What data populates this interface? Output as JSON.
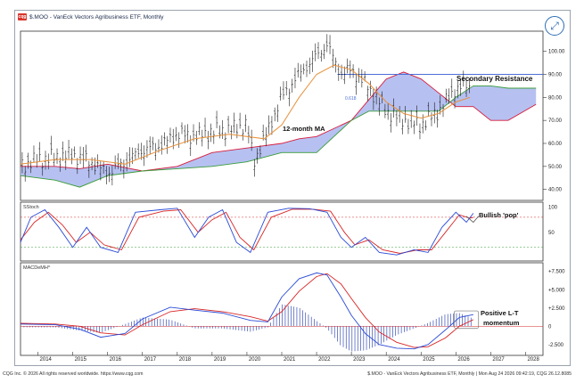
{
  "window": {
    "title": "$.MOO - VanEck Vectors Agribusiness ETF, Monthly",
    "logo_text": "cqg",
    "expand_icon": "expand-arrows-icon"
  },
  "price_panel": {
    "annotation_resistance": "Secondary Resistance",
    "annotation_ma": "12-month MA",
    "fib_label": "0.618",
    "y_ticks": [
      "100.00",
      "90.00",
      "80.00",
      "70.00",
      "60.00",
      "50.00",
      "40.00"
    ],
    "y_tick_values": [
      100,
      90,
      80,
      70,
      60,
      50,
      40
    ],
    "ylim": [
      36,
      108
    ]
  },
  "stoch_panel": {
    "label": "SStoch",
    "annotation": "Bullish 'pop'",
    "y_ticks": [
      "100",
      "50"
    ],
    "y_tick_values": [
      100,
      50
    ]
  },
  "macd_panel": {
    "label": "MACDeMH^",
    "annotation_line1": "Positive L-T",
    "annotation_line2": "momentum",
    "y_ticks": [
      "+7.500",
      "+5.000",
      "+2.500",
      "0",
      "-2.500"
    ],
    "y_tick_values": [
      7.5,
      5,
      2.5,
      0,
      -2.5
    ]
  },
  "x_axis": {
    "years": [
      "2014",
      "2015",
      "2016",
      "2017",
      "2018",
      "2019",
      "2020",
      "2021",
      "2022",
      "2023",
      "2024",
      "2025",
      "2026",
      "2027",
      "2028"
    ]
  },
  "footer": {
    "left": "CQG Inc. © 2026 All rights reserved worldwide. https://www.cqg.com",
    "right": "$.MOO - VanEck Vectors Agribusiness ETF, Monthly | Mon Aug 24 2026 09:42:19, CQG 26.12.8085"
  },
  "colors": {
    "candle": "#1a1a1a",
    "ma": "#e8913a",
    "cloud_bull": "#a9b6ef",
    "cloud_bear": "#b9c6f5",
    "span_a": "#d81b3c",
    "span_b": "#3a9c3a",
    "resistance": "#4d6fd8",
    "stoch_k": "#2b4bd6",
    "stoch_d": "#d82525",
    "macd_line": "#2b4bd6",
    "signal_line": "#d82525",
    "histogram": "#3a4fb5"
  },
  "chart_data": {
    "type": "line",
    "title": "$.MOO - VanEck Vectors Agribusiness ETF, Monthly",
    "price_series": [
      {
        "x": 2013.5,
        "y": 50
      },
      {
        "x": 2014.0,
        "y": 53
      },
      {
        "x": 2014.5,
        "y": 54
      },
      {
        "x": 2015.0,
        "y": 55
      },
      {
        "x": 2015.5,
        "y": 52
      },
      {
        "x": 2016.0,
        "y": 47
      },
      {
        "x": 2016.5,
        "y": 52
      },
      {
        "x": 2017.0,
        "y": 57
      },
      {
        "x": 2017.5,
        "y": 59
      },
      {
        "x": 2018.0,
        "y": 64
      },
      {
        "x": 2018.5,
        "y": 63
      },
      {
        "x": 2019.0,
        "y": 65
      },
      {
        "x": 2019.5,
        "y": 66
      },
      {
        "x": 2020.0,
        "y": 68
      },
      {
        "x": 2020.2,
        "y": 52
      },
      {
        "x": 2020.5,
        "y": 62
      },
      {
        "x": 2021.0,
        "y": 80
      },
      {
        "x": 2021.5,
        "y": 90
      },
      {
        "x": 2022.0,
        "y": 98
      },
      {
        "x": 2022.3,
        "y": 103
      },
      {
        "x": 2022.7,
        "y": 90
      },
      {
        "x": 2023.0,
        "y": 92
      },
      {
        "x": 2023.5,
        "y": 84
      },
      {
        "x": 2024.0,
        "y": 74
      },
      {
        "x": 2024.5,
        "y": 70
      },
      {
        "x": 2025.0,
        "y": 68
      },
      {
        "x": 2025.5,
        "y": 74
      },
      {
        "x": 2026.0,
        "y": 84
      },
      {
        "x": 2026.4,
        "y": 85
      }
    ],
    "ma_series": [
      {
        "x": 2013.5,
        "y": 51
      },
      {
        "x": 2014.5,
        "y": 53
      },
      {
        "x": 2015.5,
        "y": 53
      },
      {
        "x": 2016.5,
        "y": 51
      },
      {
        "x": 2017.5,
        "y": 57
      },
      {
        "x": 2018.5,
        "y": 62
      },
      {
        "x": 2019.5,
        "y": 64
      },
      {
        "x": 2020.5,
        "y": 62
      },
      {
        "x": 2021.0,
        "y": 68
      },
      {
        "x": 2021.5,
        "y": 80
      },
      {
        "x": 2022.0,
        "y": 90
      },
      {
        "x": 2022.5,
        "y": 94
      },
      {
        "x": 2023.0,
        "y": 92
      },
      {
        "x": 2023.5,
        "y": 86
      },
      {
        "x": 2024.0,
        "y": 78
      },
      {
        "x": 2024.5,
        "y": 73
      },
      {
        "x": 2025.0,
        "y": 71
      },
      {
        "x": 2025.5,
        "y": 73
      },
      {
        "x": 2026.0,
        "y": 78
      },
      {
        "x": 2026.4,
        "y": 80
      }
    ],
    "cloud_span_a": [
      {
        "x": 2013.5,
        "y": 50
      },
      {
        "x": 2014.5,
        "y": 50
      },
      {
        "x": 2015.2,
        "y": 49
      },
      {
        "x": 2016.0,
        "y": 51
      },
      {
        "x": 2017.0,
        "y": 48
      },
      {
        "x": 2018.0,
        "y": 50
      },
      {
        "x": 2019.0,
        "y": 56
      },
      {
        "x": 2020.0,
        "y": 58
      },
      {
        "x": 2021.0,
        "y": 60
      },
      {
        "x": 2021.5,
        "y": 62
      },
      {
        "x": 2022.0,
        "y": 63
      },
      {
        "x": 2023.0,
        "y": 70
      },
      {
        "x": 2023.5,
        "y": 79
      },
      {
        "x": 2024.0,
        "y": 88
      },
      {
        "x": 2024.5,
        "y": 91
      },
      {
        "x": 2025.0,
        "y": 88
      },
      {
        "x": 2025.5,
        "y": 82
      },
      {
        "x": 2026.0,
        "y": 76
      },
      {
        "x": 2026.5,
        "y": 76
      },
      {
        "x": 2027.0,
        "y": 70
      },
      {
        "x": 2027.5,
        "y": 70
      },
      {
        "x": 2028.3,
        "y": 77
      }
    ],
    "cloud_span_b": [
      {
        "x": 2013.5,
        "y": 46
      },
      {
        "x": 2014.5,
        "y": 44
      },
      {
        "x": 2015.2,
        "y": 41
      },
      {
        "x": 2016.0,
        "y": 46
      },
      {
        "x": 2017.0,
        "y": 48
      },
      {
        "x": 2018.0,
        "y": 49
      },
      {
        "x": 2019.0,
        "y": 50
      },
      {
        "x": 2020.0,
        "y": 52
      },
      {
        "x": 2021.0,
        "y": 56
      },
      {
        "x": 2022.0,
        "y": 56
      },
      {
        "x": 2023.0,
        "y": 70
      },
      {
        "x": 2023.5,
        "y": 74
      },
      {
        "x": 2024.0,
        "y": 74
      },
      {
        "x": 2025.0,
        "y": 74
      },
      {
        "x": 2025.5,
        "y": 74
      },
      {
        "x": 2026.0,
        "y": 80
      },
      {
        "x": 2026.5,
        "y": 85
      },
      {
        "x": 2027.0,
        "y": 85
      },
      {
        "x": 2027.5,
        "y": 84
      },
      {
        "x": 2028.3,
        "y": 84
      }
    ],
    "resistance_level": 90,
    "stoch_k": [
      {
        "x": 2013.5,
        "y": 30
      },
      {
        "x": 2013.8,
        "y": 80
      },
      {
        "x": 2014.2,
        "y": 95
      },
      {
        "x": 2014.6,
        "y": 60
      },
      {
        "x": 2015.0,
        "y": 20
      },
      {
        "x": 2015.4,
        "y": 60
      },
      {
        "x": 2015.8,
        "y": 20
      },
      {
        "x": 2016.3,
        "y": 10
      },
      {
        "x": 2016.8,
        "y": 90
      },
      {
        "x": 2017.5,
        "y": 95
      },
      {
        "x": 2018.0,
        "y": 98
      },
      {
        "x": 2018.5,
        "y": 40
      },
      {
        "x": 2018.9,
        "y": 80
      },
      {
        "x": 2019.3,
        "y": 95
      },
      {
        "x": 2019.7,
        "y": 30
      },
      {
        "x": 2020.1,
        "y": 10
      },
      {
        "x": 2020.6,
        "y": 90
      },
      {
        "x": 2021.2,
        "y": 98
      },
      {
        "x": 2021.8,
        "y": 97
      },
      {
        "x": 2022.3,
        "y": 90
      },
      {
        "x": 2022.7,
        "y": 40
      },
      {
        "x": 2023.0,
        "y": 20
      },
      {
        "x": 2023.4,
        "y": 40
      },
      {
        "x": 2023.8,
        "y": 10
      },
      {
        "x": 2024.3,
        "y": 5
      },
      {
        "x": 2024.8,
        "y": 15
      },
      {
        "x": 2025.2,
        "y": 10
      },
      {
        "x": 2025.6,
        "y": 60
      },
      {
        "x": 2026.0,
        "y": 90
      },
      {
        "x": 2026.3,
        "y": 70
      },
      {
        "x": 2026.5,
        "y": 88
      }
    ],
    "stoch_d": [
      {
        "x": 2013.5,
        "y": 35
      },
      {
        "x": 2013.9,
        "y": 70
      },
      {
        "x": 2014.3,
        "y": 90
      },
      {
        "x": 2014.7,
        "y": 65
      },
      {
        "x": 2015.1,
        "y": 30
      },
      {
        "x": 2015.5,
        "y": 50
      },
      {
        "x": 2015.9,
        "y": 25
      },
      {
        "x": 2016.4,
        "y": 15
      },
      {
        "x": 2016.9,
        "y": 80
      },
      {
        "x": 2017.6,
        "y": 92
      },
      {
        "x": 2018.1,
        "y": 95
      },
      {
        "x": 2018.6,
        "y": 50
      },
      {
        "x": 2019.0,
        "y": 75
      },
      {
        "x": 2019.4,
        "y": 90
      },
      {
        "x": 2019.8,
        "y": 40
      },
      {
        "x": 2020.2,
        "y": 15
      },
      {
        "x": 2020.7,
        "y": 80
      },
      {
        "x": 2021.3,
        "y": 96
      },
      {
        "x": 2021.9,
        "y": 96
      },
      {
        "x": 2022.4,
        "y": 92
      },
      {
        "x": 2022.8,
        "y": 50
      },
      {
        "x": 2023.1,
        "y": 25
      },
      {
        "x": 2023.5,
        "y": 35
      },
      {
        "x": 2023.9,
        "y": 15
      },
      {
        "x": 2024.4,
        "y": 8
      },
      {
        "x": 2024.9,
        "y": 15
      },
      {
        "x": 2025.3,
        "y": 15
      },
      {
        "x": 2025.7,
        "y": 50
      },
      {
        "x": 2026.1,
        "y": 85
      },
      {
        "x": 2026.4,
        "y": 78
      },
      {
        "x": 2026.5,
        "y": 80
      }
    ],
    "macd": [
      {
        "x": 2013.5,
        "y": 0.3
      },
      {
        "x": 2014.5,
        "y": 0.2
      },
      {
        "x": 2015.2,
        "y": -0.4
      },
      {
        "x": 2015.8,
        "y": -1.5
      },
      {
        "x": 2016.5,
        "y": -1.0
      },
      {
        "x": 2017.0,
        "y": 1.0
      },
      {
        "x": 2017.8,
        "y": 2.6
      },
      {
        "x": 2018.5,
        "y": 2.2
      },
      {
        "x": 2019.3,
        "y": 1.8
      },
      {
        "x": 2020.1,
        "y": 0.8
      },
      {
        "x": 2020.6,
        "y": 0.6
      },
      {
        "x": 2021.0,
        "y": 4.0
      },
      {
        "x": 2021.5,
        "y": 6.5
      },
      {
        "x": 2022.0,
        "y": 7.3
      },
      {
        "x": 2022.3,
        "y": 7.0
      },
      {
        "x": 2022.7,
        "y": 4.0
      },
      {
        "x": 2023.0,
        "y": 1.5
      },
      {
        "x": 2023.4,
        "y": -1.0
      },
      {
        "x": 2023.8,
        "y": -2.5
      },
      {
        "x": 2024.3,
        "y": -3.0
      },
      {
        "x": 2024.8,
        "y": -3.1
      },
      {
        "x": 2025.2,
        "y": -2.5
      },
      {
        "x": 2025.7,
        "y": -0.5
      },
      {
        "x": 2026.1,
        "y": 1.2
      },
      {
        "x": 2026.5,
        "y": 1.6
      }
    ],
    "macd_signal": [
      {
        "x": 2013.5,
        "y": 0.4
      },
      {
        "x": 2014.5,
        "y": 0.3
      },
      {
        "x": 2015.2,
        "y": 0.0
      },
      {
        "x": 2015.8,
        "y": -0.9
      },
      {
        "x": 2016.5,
        "y": -1.2
      },
      {
        "x": 2017.0,
        "y": 0.2
      },
      {
        "x": 2017.8,
        "y": 2.0
      },
      {
        "x": 2018.5,
        "y": 2.4
      },
      {
        "x": 2019.3,
        "y": 2.0
      },
      {
        "x": 2020.1,
        "y": 1.3
      },
      {
        "x": 2020.6,
        "y": 0.7
      },
      {
        "x": 2021.0,
        "y": 2.0
      },
      {
        "x": 2021.5,
        "y": 4.8
      },
      {
        "x": 2022.0,
        "y": 6.8
      },
      {
        "x": 2022.3,
        "y": 7.2
      },
      {
        "x": 2022.7,
        "y": 5.8
      },
      {
        "x": 2023.0,
        "y": 3.8
      },
      {
        "x": 2023.4,
        "y": 1.2
      },
      {
        "x": 2023.8,
        "y": -0.8
      },
      {
        "x": 2024.3,
        "y": -2.2
      },
      {
        "x": 2024.8,
        "y": -2.9
      },
      {
        "x": 2025.2,
        "y": -2.8
      },
      {
        "x": 2025.7,
        "y": -1.6
      },
      {
        "x": 2026.1,
        "y": 0.0
      },
      {
        "x": 2026.5,
        "y": 0.9
      }
    ],
    "xlim": [
      2013.5,
      2028.5
    ]
  }
}
